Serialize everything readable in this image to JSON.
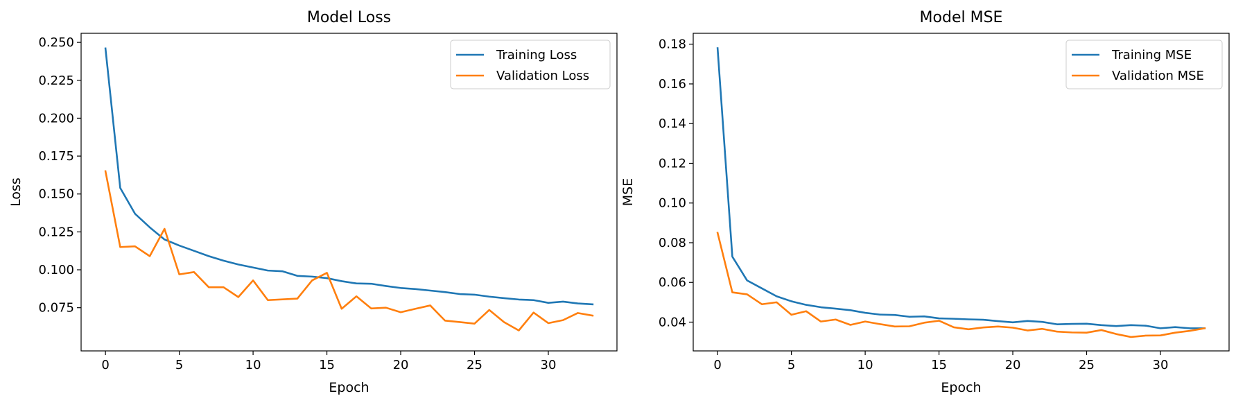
{
  "colors": {
    "training": "#1f77b4",
    "validation": "#ff7f0e"
  },
  "chart_data": [
    {
      "type": "line",
      "title": "Model Loss",
      "xlabel": "Epoch",
      "ylabel": "Loss",
      "xlim": [
        -1.65,
        34.65
      ],
      "ylim": [
        0.0465,
        0.256
      ],
      "xticks": [
        0,
        5,
        10,
        15,
        20,
        25,
        30
      ],
      "yticks": [
        0.075,
        0.1,
        0.125,
        0.15,
        0.175,
        0.2,
        0.225,
        0.25
      ],
      "ytick_labels": [
        "0.075",
        "0.100",
        "0.125",
        "0.150",
        "0.175",
        "0.200",
        "0.225",
        "0.250"
      ],
      "legend_position": "upper right",
      "grid": false,
      "x": [
        0,
        1,
        2,
        3,
        4,
        5,
        6,
        7,
        8,
        9,
        10,
        11,
        12,
        13,
        14,
        15,
        16,
        17,
        18,
        19,
        20,
        21,
        22,
        23,
        24,
        25,
        26,
        27,
        28,
        29,
        30,
        31,
        32,
        33
      ],
      "series": [
        {
          "name": "Training Loss",
          "color": "#1f77b4",
          "values": [
            0.246,
            0.154,
            0.137,
            0.128,
            0.12,
            0.116,
            0.1125,
            0.109,
            0.106,
            0.1035,
            0.1015,
            0.0995,
            0.099,
            0.096,
            0.0955,
            0.0945,
            0.0925,
            0.091,
            0.0908,
            0.0893,
            0.088,
            0.0873,
            0.0863,
            0.0853,
            0.084,
            0.0836,
            0.0823,
            0.0813,
            0.0804,
            0.08,
            0.0782,
            0.079,
            0.0778,
            0.0772
          ]
        },
        {
          "name": "Validation Loss",
          "color": "#ff7f0e",
          "values": [
            0.165,
            0.115,
            0.1155,
            0.109,
            0.127,
            0.097,
            0.0985,
            0.0885,
            0.0885,
            0.082,
            0.093,
            0.08,
            0.0805,
            0.081,
            0.093,
            0.098,
            0.0743,
            0.0825,
            0.0745,
            0.075,
            0.072,
            0.0743,
            0.0765,
            0.0665,
            0.0655,
            0.0645,
            0.0735,
            0.0655,
            0.06,
            0.0718,
            0.0648,
            0.0668,
            0.0715,
            0.0698
          ]
        }
      ]
    },
    {
      "type": "line",
      "title": "Model MSE",
      "xlabel": "Epoch",
      "ylabel": "MSE",
      "xlim": [
        -1.65,
        34.65
      ],
      "ylim": [
        0.0255,
        0.1855
      ],
      "xticks": [
        0,
        5,
        10,
        15,
        20,
        25,
        30
      ],
      "yticks": [
        0.04,
        0.06,
        0.08,
        0.1,
        0.12,
        0.14,
        0.16,
        0.18
      ],
      "ytick_labels": [
        "0.04",
        "0.06",
        "0.08",
        "0.10",
        "0.12",
        "0.14",
        "0.16",
        "0.18"
      ],
      "legend_position": "upper right",
      "grid": false,
      "x": [
        0,
        1,
        2,
        3,
        4,
        5,
        6,
        7,
        8,
        9,
        10,
        11,
        12,
        13,
        14,
        15,
        16,
        17,
        18,
        19,
        20,
        21,
        22,
        23,
        24,
        25,
        26,
        27,
        28,
        29,
        30,
        31,
        32,
        33
      ],
      "series": [
        {
          "name": "Training MSE",
          "color": "#1f77b4",
          "values": [
            0.178,
            0.073,
            0.061,
            0.057,
            0.053,
            0.0505,
            0.0487,
            0.0475,
            0.0468,
            0.046,
            0.0447,
            0.0438,
            0.0436,
            0.0427,
            0.0429,
            0.0419,
            0.0417,
            0.0414,
            0.0412,
            0.0405,
            0.0399,
            0.0406,
            0.0401,
            0.0389,
            0.0391,
            0.0392,
            0.0385,
            0.038,
            0.0385,
            0.0382,
            0.0369,
            0.0375,
            0.0369,
            0.0369
          ]
        },
        {
          "name": "Validation MSE",
          "color": "#ff7f0e",
          "values": [
            0.085,
            0.055,
            0.054,
            0.049,
            0.05,
            0.0437,
            0.0455,
            0.0403,
            0.0413,
            0.0386,
            0.0403,
            0.039,
            0.0378,
            0.0379,
            0.0397,
            0.0407,
            0.0374,
            0.0364,
            0.0373,
            0.0378,
            0.0372,
            0.0358,
            0.0366,
            0.0352,
            0.0348,
            0.0347,
            0.036,
            0.034,
            0.0325,
            0.0332,
            0.0333,
            0.0347,
            0.0356,
            0.0369
          ]
        }
      ]
    }
  ]
}
